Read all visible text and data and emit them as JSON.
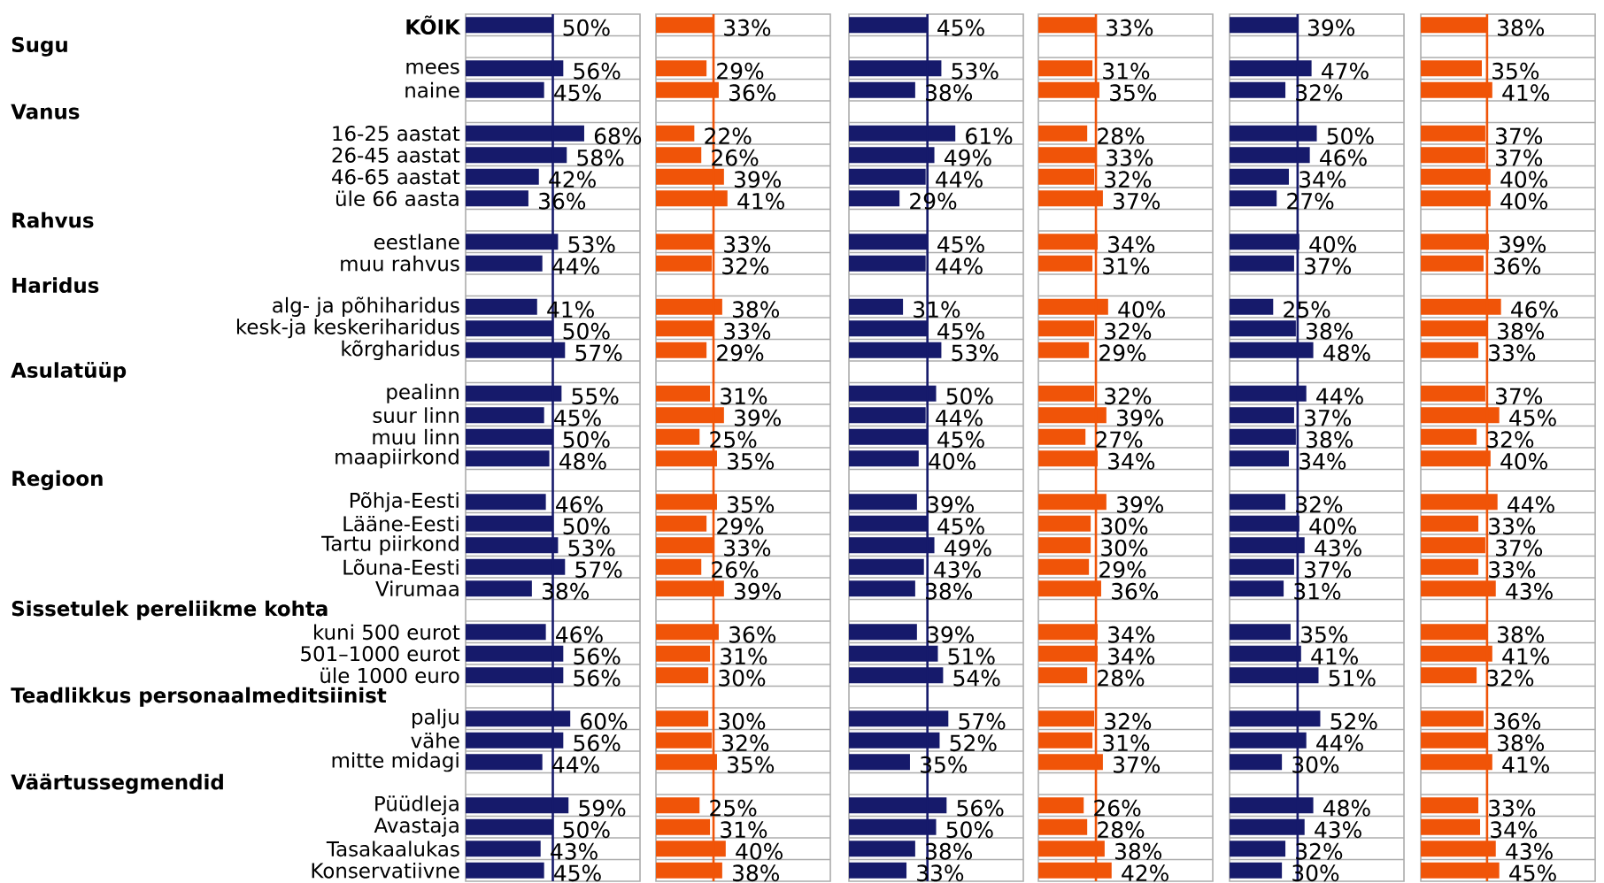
{
  "chart_data": [
    {
      "type": "bar",
      "orientation": "horizontal",
      "color": "#161a6b",
      "xlim": [
        0,
        100
      ],
      "grid": "y",
      "tick_labels": "y",
      "categories": [
        "KÕIK",
        null,
        "mees",
        "naine",
        null,
        "16-25 aastat",
        "26-45 aastat",
        "46-65 aastat",
        "üle 66 aasta",
        null,
        "eestlane",
        "muu rahvus",
        null,
        "alg- ja põhiharidus",
        "kesk-ja keskeriharidus",
        "kõrgharidus",
        null,
        "pealinn",
        "suur linn",
        "muu linn",
        "maapiirkond",
        null,
        "Põhja-Eesti",
        "Lääne-Eesti",
        "Tartu piirkond",
        "Lõuna-Eesti",
        "Virumaa",
        null,
        "kuni 500 eurot",
        "501–1000 eurot",
        "üle 1000 euro",
        null,
        "palju",
        "vähe",
        "mitte midagi",
        null,
        "Püüdleja",
        "Avastaja",
        "Tasakaalukas",
        "Konservatiivne"
      ],
      "annotations": [
        "Sugu",
        "Vanus",
        "Rahvus",
        "Haridus",
        "Asulatüüp",
        "Regioon",
        "Sissetulek pereliikme kohta",
        "Teadlikkus personaalmeditsiinist",
        "Väärtussegmendid"
      ],
      "values": [
        50,
        null,
        56,
        45,
        null,
        68,
        58,
        42,
        36,
        null,
        53,
        44,
        null,
        41,
        50,
        57,
        null,
        55,
        45,
        50,
        48,
        null,
        46,
        50,
        53,
        57,
        38,
        null,
        46,
        56,
        56,
        null,
        60,
        56,
        44,
        null,
        59,
        50,
        43,
        45
      ],
      "value_labels": [
        "50%",
        null,
        "56%",
        "45%",
        null,
        "68%",
        "58%",
        "42%",
        "36%",
        null,
        "53%",
        "44%",
        null,
        "41%",
        "50%",
        "57%",
        null,
        "55%",
        "45%",
        "50%",
        "48%",
        null,
        "46%",
        "50%",
        "53%",
        "57%",
        "38%",
        null,
        "46%",
        "56%",
        "56%",
        null,
        "60%",
        "56%",
        "44%",
        null,
        "59%",
        "50%",
        "43%",
        "45%"
      ],
      "ref_lines": [
        {
          "axis": "x",
          "value": 50,
          "color": "#161a6b"
        }
      ]
    },
    {
      "type": "bar",
      "orientation": "horizontal",
      "color": "#f05408",
      "xlim": [
        0,
        100
      ],
      "grid": "y",
      "tick_labels": false,
      "categories": [
        null,
        null,
        null,
        null,
        null,
        null,
        null,
        null,
        null,
        null,
        null,
        null,
        null,
        null,
        null,
        null,
        null,
        null,
        null,
        null,
        null,
        null,
        null,
        null,
        null,
        null,
        null,
        null,
        null,
        null,
        null,
        null,
        null,
        null,
        null,
        null,
        null,
        null,
        null,
        null
      ],
      "values": [
        33,
        null,
        29,
        36,
        null,
        22,
        26,
        39,
        41,
        null,
        33,
        32,
        null,
        38,
        33,
        29,
        null,
        31,
        39,
        25,
        35,
        null,
        35,
        29,
        33,
        26,
        39,
        null,
        36,
        31,
        30,
        null,
        30,
        32,
        35,
        null,
        25,
        31,
        40,
        38
      ],
      "value_labels": [
        "33%",
        null,
        "29%",
        "36%",
        null,
        "22%",
        "26%",
        "39%",
        "41%",
        null,
        "33%",
        "32%",
        null,
        "38%",
        "33%",
        "29%",
        null,
        "31%",
        "39%",
        "25%",
        "35%",
        null,
        "35%",
        "29%",
        "33%",
        "26%",
        "39%",
        null,
        "36%",
        "31%",
        "30%",
        null,
        "30%",
        "32%",
        "35%",
        null,
        "25%",
        "31%",
        "40%",
        "38%"
      ],
      "ref_lines": [
        {
          "axis": "x",
          "value": 33,
          "color": "#f05408"
        }
      ]
    },
    {
      "type": "bar",
      "orientation": "horizontal",
      "color": "#161a6b",
      "xlim": [
        0,
        100
      ],
      "grid": "y",
      "tick_labels": false,
      "categories": [
        null,
        null,
        null,
        null,
        null,
        null,
        null,
        null,
        null,
        null,
        null,
        null,
        null,
        null,
        null,
        null,
        null,
        null,
        null,
        null,
        null,
        null,
        null,
        null,
        null,
        null,
        null,
        null,
        null,
        null,
        null,
        null,
        null,
        null,
        null,
        null,
        null,
        null,
        null,
        null
      ],
      "values": [
        45,
        null,
        53,
        38,
        null,
        61,
        49,
        44,
        29,
        null,
        45,
        44,
        null,
        31,
        45,
        53,
        null,
        50,
        44,
        45,
        40,
        null,
        39,
        45,
        49,
        43,
        38,
        null,
        39,
        51,
        54,
        null,
        57,
        52,
        35,
        null,
        56,
        50,
        38,
        33
      ],
      "value_labels": [
        "45%",
        null,
        "53%",
        "38%",
        null,
        "61%",
        "49%",
        "44%",
        "29%",
        null,
        "45%",
        "44%",
        null,
        "31%",
        "45%",
        "53%",
        null,
        "50%",
        "44%",
        "45%",
        "40%",
        null,
        "39%",
        "45%",
        "49%",
        "43%",
        "38%",
        null,
        "39%",
        "51%",
        "54%",
        null,
        "57%",
        "52%",
        "35%",
        null,
        "56%",
        "50%",
        "38%",
        "33%"
      ],
      "ref_lines": [
        {
          "axis": "x",
          "value": 45,
          "color": "#161a6b"
        }
      ]
    },
    {
      "type": "bar",
      "orientation": "horizontal",
      "color": "#f05408",
      "xlim": [
        0,
        100
      ],
      "grid": "y",
      "tick_labels": false,
      "categories": [
        null,
        null,
        null,
        null,
        null,
        null,
        null,
        null,
        null,
        null,
        null,
        null,
        null,
        null,
        null,
        null,
        null,
        null,
        null,
        null,
        null,
        null,
        null,
        null,
        null,
        null,
        null,
        null,
        null,
        null,
        null,
        null,
        null,
        null,
        null,
        null,
        null,
        null,
        null,
        null
      ],
      "values": [
        33,
        null,
        31,
        35,
        null,
        28,
        33,
        32,
        37,
        null,
        34,
        31,
        null,
        40,
        32,
        29,
        null,
        32,
        39,
        27,
        34,
        null,
        39,
        30,
        30,
        29,
        36,
        null,
        34,
        34,
        28,
        null,
        32,
        31,
        37,
        null,
        26,
        28,
        38,
        42
      ],
      "value_labels": [
        "33%",
        null,
        "31%",
        "35%",
        null,
        "28%",
        "33%",
        "32%",
        "37%",
        null,
        "34%",
        "31%",
        null,
        "40%",
        "32%",
        "29%",
        null,
        "32%",
        "39%",
        "27%",
        "34%",
        null,
        "39%",
        "30%",
        "30%",
        "29%",
        "36%",
        null,
        "34%",
        "34%",
        "28%",
        null,
        "32%",
        "31%",
        "37%",
        null,
        "26%",
        "28%",
        "38%",
        "42%"
      ],
      "ref_lines": [
        {
          "axis": "x",
          "value": 33,
          "color": "#f05408"
        }
      ]
    },
    {
      "type": "bar",
      "orientation": "horizontal",
      "color": "#161a6b",
      "xlim": [
        0,
        100
      ],
      "grid": "y",
      "tick_labels": false,
      "categories": [
        null,
        null,
        null,
        null,
        null,
        null,
        null,
        null,
        null,
        null,
        null,
        null,
        null,
        null,
        null,
        null,
        null,
        null,
        null,
        null,
        null,
        null,
        null,
        null,
        null,
        null,
        null,
        null,
        null,
        null,
        null,
        null,
        null,
        null,
        null,
        null,
        null,
        null,
        null,
        null
      ],
      "values": [
        39,
        null,
        47,
        32,
        null,
        50,
        46,
        34,
        27,
        null,
        40,
        37,
        null,
        25,
        38,
        48,
        null,
        44,
        37,
        38,
        34,
        null,
        32,
        40,
        43,
        37,
        31,
        null,
        35,
        41,
        51,
        null,
        52,
        44,
        30,
        null,
        48,
        43,
        32,
        30
      ],
      "value_labels": [
        "39%",
        null,
        "47%",
        "32%",
        null,
        "50%",
        "46%",
        "34%",
        "27%",
        null,
        "40%",
        "37%",
        null,
        "25%",
        "38%",
        "48%",
        null,
        "44%",
        "37%",
        "38%",
        "34%",
        null,
        "32%",
        "40%",
        "43%",
        "37%",
        "31%",
        null,
        "35%",
        "41%",
        "51%",
        null,
        "52%",
        "44%",
        "30%",
        null,
        "48%",
        "43%",
        "32%",
        "30%"
      ],
      "ref_lines": [
        {
          "axis": "x",
          "value": 39,
          "color": "#161a6b"
        }
      ]
    },
    {
      "type": "bar",
      "orientation": "horizontal",
      "color": "#f05408",
      "xlim": [
        0,
        100
      ],
      "grid": "y",
      "tick_labels": false,
      "categories": [
        null,
        null,
        null,
        null,
        null,
        null,
        null,
        null,
        null,
        null,
        null,
        null,
        null,
        null,
        null,
        null,
        null,
        null,
        null,
        null,
        null,
        null,
        null,
        null,
        null,
        null,
        null,
        null,
        null,
        null,
        null,
        null,
        null,
        null,
        null,
        null,
        null,
        null,
        null,
        null
      ],
      "values": [
        38,
        null,
        35,
        41,
        null,
        37,
        37,
        40,
        40,
        null,
        39,
        36,
        null,
        46,
        38,
        33,
        null,
        37,
        45,
        32,
        40,
        null,
        44,
        33,
        37,
        33,
        43,
        null,
        38,
        41,
        32,
        null,
        36,
        38,
        41,
        null,
        33,
        34,
        43,
        45
      ],
      "value_labels": [
        "38%",
        null,
        "35%",
        "41%",
        null,
        "37%",
        "37%",
        "40%",
        "40%",
        null,
        "39%",
        "36%",
        null,
        "46%",
        "38%",
        "33%",
        null,
        "37%",
        "45%",
        "32%",
        "40%",
        null,
        "44%",
        "33%",
        "37%",
        "33%",
        "43%",
        null,
        "38%",
        "41%",
        "32%",
        null,
        "36%",
        "38%",
        "41%",
        null,
        "33%",
        "34%",
        "43%",
        "45%"
      ],
      "ref_lines": [
        {
          "axis": "x",
          "value": 38,
          "color": "#f05408"
        }
      ]
    }
  ]
}
